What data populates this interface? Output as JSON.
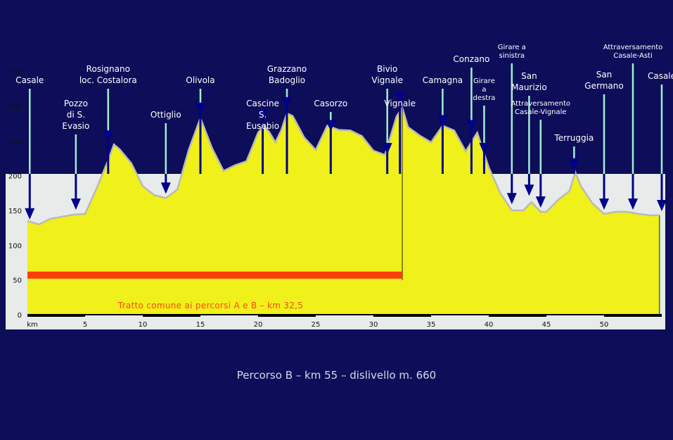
{
  "chart_data": {
    "type": "area",
    "caption": "Percorso B – km 55 – dislivello m. 660",
    "x_unit_label": "km",
    "xlim": [
      0,
      55
    ],
    "ylim": [
      0,
      370
    ],
    "x_ticks": [
      5,
      10,
      15,
      20,
      25,
      30,
      35,
      40,
      45,
      50
    ],
    "y_ticks": [
      0,
      50,
      100,
      150,
      200,
      250,
      300,
      350
    ],
    "grid": false,
    "colors": {
      "background": "#0d0d59",
      "plot_bg": "#e7ebea",
      "fill": "#f0f01a",
      "outline": "#b9b9b9",
      "band": "#ff3d0a",
      "arrow": "#00008c",
      "stem": "#a0f0d0"
    },
    "profile": [
      [
        0,
        135
      ],
      [
        1,
        130
      ],
      [
        2,
        138
      ],
      [
        3,
        141
      ],
      [
        4,
        144
      ],
      [
        5,
        145
      ],
      [
        6,
        182
      ],
      [
        7,
        222
      ],
      [
        7.5,
        245
      ],
      [
        8,
        238
      ],
      [
        9,
        218
      ],
      [
        10,
        185
      ],
      [
        11,
        172
      ],
      [
        12,
        168
      ],
      [
        13,
        180
      ],
      [
        14,
        238
      ],
      [
        15,
        283
      ],
      [
        16,
        240
      ],
      [
        17,
        207
      ],
      [
        18,
        215
      ],
      [
        19,
        221
      ],
      [
        20,
        262
      ],
      [
        20.5,
        272
      ],
      [
        21,
        262
      ],
      [
        21.5,
        248
      ],
      [
        22,
        265
      ],
      [
        22.5,
        290
      ],
      [
        23,
        286
      ],
      [
        24,
        255
      ],
      [
        25,
        237
      ],
      [
        26,
        272
      ],
      [
        27,
        266
      ],
      [
        28,
        265
      ],
      [
        29,
        257
      ],
      [
        30,
        236
      ],
      [
        31,
        230
      ],
      [
        32,
        285
      ],
      [
        32.5,
        298
      ],
      [
        33,
        270
      ],
      [
        34,
        258
      ],
      [
        35,
        248
      ],
      [
        36,
        272
      ],
      [
        37,
        265
      ],
      [
        38,
        235
      ],
      [
        39,
        262
      ],
      [
        40,
        212
      ],
      [
        41,
        175
      ],
      [
        42,
        150
      ],
      [
        43,
        150
      ],
      [
        43.7,
        162
      ],
      [
        44.5,
        148
      ],
      [
        45,
        148
      ],
      [
        46,
        165
      ],
      [
        47,
        178
      ],
      [
        47.5,
        205
      ],
      [
        48,
        185
      ],
      [
        49,
        160
      ],
      [
        50,
        145
      ],
      [
        51,
        148
      ],
      [
        52,
        148
      ],
      [
        53,
        145
      ],
      [
        54,
        143
      ],
      [
        54.8,
        143
      ]
    ],
    "common_section": {
      "label": "Tratto comune ai percorsi A e B – km 32,5",
      "from_km": 0,
      "to_km": 32.5
    },
    "waypoints": [
      {
        "name": [
          "Casale"
        ],
        "km": 0.2,
        "alt": 138
      },
      {
        "name": [
          "Pozzo",
          "di S.",
          "Evasio"
        ],
        "km": 4.2,
        "alt": 152
      },
      {
        "name": [
          "Rosignano",
          "loc. Costalora"
        ],
        "km": 7,
        "alt": 250
      },
      {
        "name": [
          "Ottiglio"
        ],
        "km": 12,
        "alt": 175
      },
      {
        "name": [
          "Olivola"
        ],
        "km": 15,
        "alt": 290
      },
      {
        "name": [
          "Cascine",
          "S.",
          "Eusebio"
        ],
        "km": 20.4,
        "alt": 280
      },
      {
        "name": [
          "Grazzano",
          "Badoglio"
        ],
        "km": 22.5,
        "alt": 298
      },
      {
        "name": [
          "Casorzo"
        ],
        "km": 26.3,
        "alt": 265
      },
      {
        "name": [
          "Bivio",
          "Vignale"
        ],
        "km": 31.2,
        "alt": 232
      },
      {
        "name": [
          "Vignale"
        ],
        "km": 32.3,
        "alt": 305
      },
      {
        "name": [
          "Camagna"
        ],
        "km": 36,
        "alt": 272
      },
      {
        "name": [
          "Conzano"
        ],
        "km": 38.5,
        "alt": 265
      },
      {
        "name": [
          "Girare",
          "a",
          "destra"
        ],
        "km": 39.6,
        "alt": 232,
        "small": true
      },
      {
        "name": [
          "Girare a",
          "sinistra"
        ],
        "km": 42,
        "alt": 160,
        "small": true
      },
      {
        "name": [
          "San",
          "Maurizio"
        ],
        "km": 43.5,
        "alt": 172
      },
      {
        "name": [
          "Attraversamento",
          "Casale-Vignale"
        ],
        "km": 44.5,
        "alt": 155,
        "small": true
      },
      {
        "name": [
          "Terruggia"
        ],
        "km": 47.4,
        "alt": 210
      },
      {
        "name": [
          "San",
          "Germano"
        ],
        "km": 50,
        "alt": 152
      },
      {
        "name": [
          "Attraversamento",
          "Casale-Asti"
        ],
        "km": 52.5,
        "alt": 152,
        "small": true
      },
      {
        "name": [
          "Casale"
        ],
        "km": 55,
        "alt": 150
      }
    ]
  }
}
